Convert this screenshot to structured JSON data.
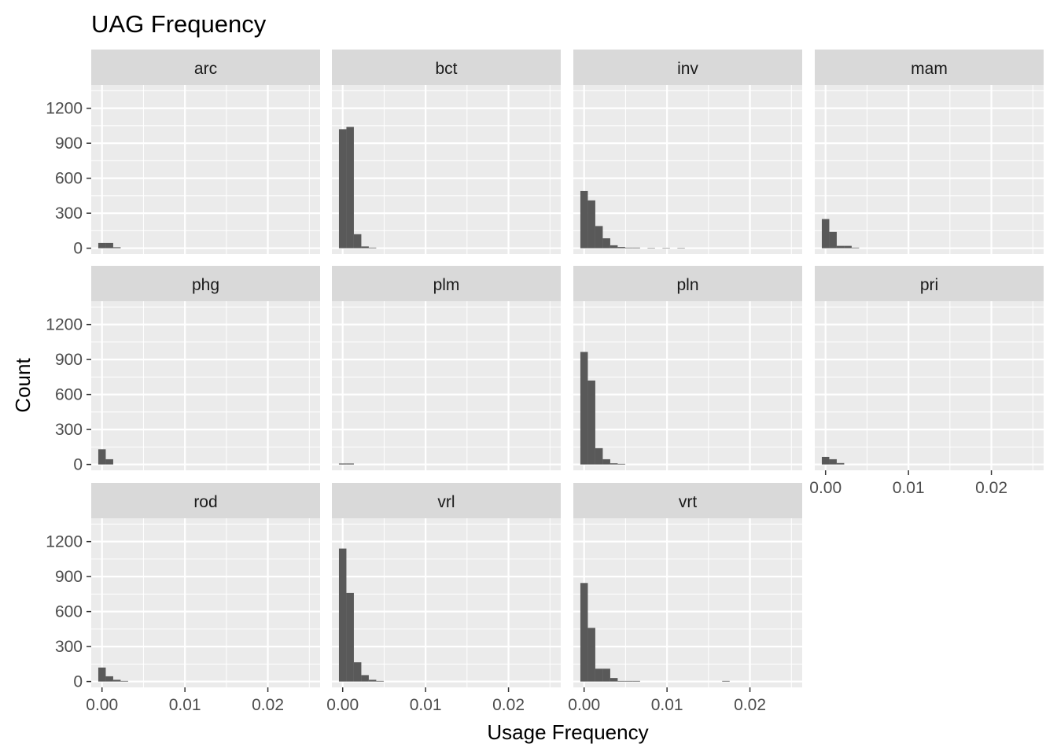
{
  "chart_data": {
    "type": "bar",
    "title": "UAG Frequency",
    "xlabel": "Usage Frequency",
    "ylabel": "Count",
    "xlim": [
      -0.0013,
      0.0263
    ],
    "ylim": [
      -50,
      1400
    ],
    "x_ticks": [
      0.0,
      0.01,
      0.02
    ],
    "x_tick_labels": [
      "0.00",
      "0.01",
      "0.02"
    ],
    "y_ticks": [
      0,
      300,
      600,
      900,
      1200
    ],
    "y_tick_labels": [
      "0",
      "300",
      "600",
      "900",
      "1200"
    ],
    "bin_width": 0.0009,
    "bar_color": "#595959",
    "panel_color": "#ebebeb",
    "strip_color": "#d9d9d9",
    "grid": true,
    "panels": [
      {
        "name": "arc",
        "bins": [
          {
            "x": 0.0,
            "count": 45
          },
          {
            "x": 0.0009,
            "count": 45
          },
          {
            "x": 0.0018,
            "count": 8
          }
        ]
      },
      {
        "name": "bct",
        "bins": [
          {
            "x": 0.0,
            "count": 1020
          },
          {
            "x": 0.0009,
            "count": 1040
          },
          {
            "x": 0.0018,
            "count": 120
          },
          {
            "x": 0.0027,
            "count": 15
          },
          {
            "x": 0.0036,
            "count": 5
          }
        ]
      },
      {
        "name": "inv",
        "bins": [
          {
            "x": 0.0,
            "count": 490
          },
          {
            "x": 0.0009,
            "count": 410
          },
          {
            "x": 0.0018,
            "count": 190
          },
          {
            "x": 0.0027,
            "count": 85
          },
          {
            "x": 0.0036,
            "count": 25
          },
          {
            "x": 0.0045,
            "count": 10
          },
          {
            "x": 0.0054,
            "count": 5
          },
          {
            "x": 0.0063,
            "count": 5
          },
          {
            "x": 0.0081,
            "count": 3
          },
          {
            "x": 0.0099,
            "count": 3
          },
          {
            "x": 0.0117,
            "count": 3
          }
        ]
      },
      {
        "name": "mam",
        "bins": [
          {
            "x": 0.0,
            "count": 250
          },
          {
            "x": 0.0009,
            "count": 140
          },
          {
            "x": 0.0018,
            "count": 20
          },
          {
            "x": 0.0027,
            "count": 20
          },
          {
            "x": 0.0036,
            "count": 5
          }
        ]
      },
      {
        "name": "phg",
        "bins": [
          {
            "x": 0.0,
            "count": 130
          },
          {
            "x": 0.0009,
            "count": 45
          }
        ]
      },
      {
        "name": "plm",
        "bins": [
          {
            "x": 0.0,
            "count": 8
          },
          {
            "x": 0.0009,
            "count": 8
          }
        ]
      },
      {
        "name": "pln",
        "bins": [
          {
            "x": 0.0,
            "count": 965
          },
          {
            "x": 0.0009,
            "count": 720
          },
          {
            "x": 0.0018,
            "count": 140
          },
          {
            "x": 0.0027,
            "count": 45
          },
          {
            "x": 0.0036,
            "count": 10
          },
          {
            "x": 0.0045,
            "count": 5
          }
        ]
      },
      {
        "name": "pri",
        "bins": [
          {
            "x": 0.0,
            "count": 65
          },
          {
            "x": 0.0009,
            "count": 45
          },
          {
            "x": 0.0018,
            "count": 12
          }
        ]
      },
      {
        "name": "rod",
        "bins": [
          {
            "x": 0.0,
            "count": 120
          },
          {
            "x": 0.0009,
            "count": 45
          },
          {
            "x": 0.0018,
            "count": 15
          },
          {
            "x": 0.0027,
            "count": 5
          }
        ]
      },
      {
        "name": "vrl",
        "bins": [
          {
            "x": 0.0,
            "count": 1140
          },
          {
            "x": 0.0009,
            "count": 760
          },
          {
            "x": 0.0018,
            "count": 165
          },
          {
            "x": 0.0027,
            "count": 55
          },
          {
            "x": 0.0036,
            "count": 15
          },
          {
            "x": 0.0045,
            "count": 5
          }
        ]
      },
      {
        "name": "vrt",
        "bins": [
          {
            "x": 0.0,
            "count": 845
          },
          {
            "x": 0.0009,
            "count": 460
          },
          {
            "x": 0.0018,
            "count": 110
          },
          {
            "x": 0.0027,
            "count": 110
          },
          {
            "x": 0.0036,
            "count": 30
          },
          {
            "x": 0.0045,
            "count": 5
          },
          {
            "x": 0.0054,
            "count": 5
          },
          {
            "x": 0.0063,
            "count": 5
          },
          {
            "x": 0.0171,
            "count": 5
          }
        ]
      }
    ]
  }
}
